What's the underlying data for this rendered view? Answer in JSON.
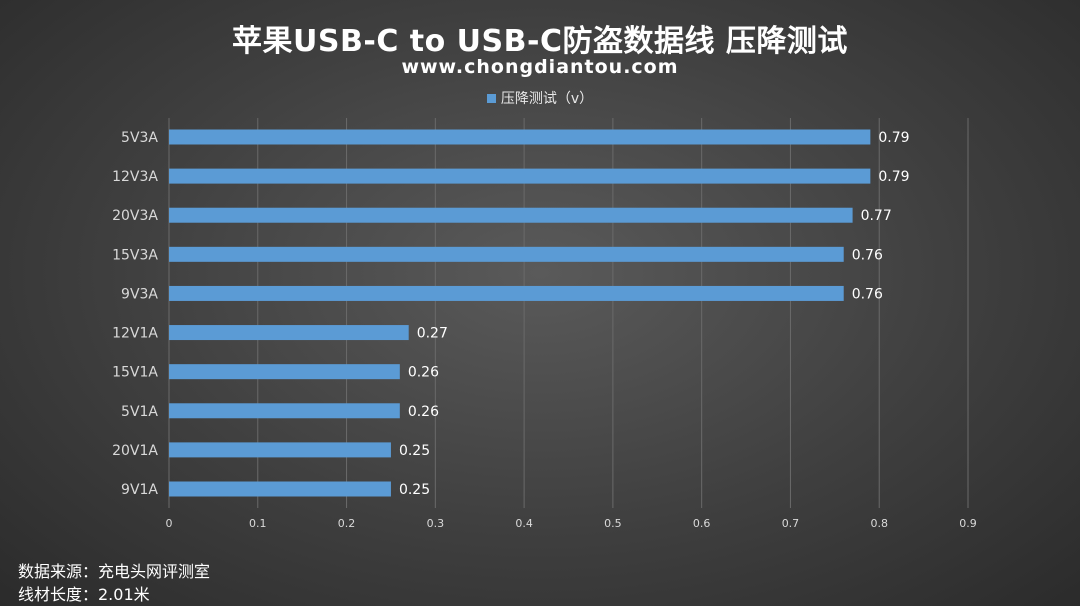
{
  "title": "苹果USB-C to USB-C防盗数据线 压降测试",
  "subtitle": "www.chongdiantou.com",
  "legend": "压降测试（v）",
  "footer": {
    "source": "数据来源：充电头网评测室",
    "length": "线材长度：2.01米"
  },
  "colors": {
    "bar": "#5b9bd5",
    "grid": "#6a6a6a",
    "text": "#ffffff",
    "tick": "#d9d9d9"
  },
  "chart_data": {
    "type": "bar",
    "orientation": "horizontal",
    "categories": [
      "5V3A",
      "12V3A",
      "20V3A",
      "15V3A",
      "9V3A",
      "12V1A",
      "15V1A",
      "5V1A",
      "20V1A",
      "9V1A"
    ],
    "series": [
      {
        "name": "压降测试（v）",
        "values": [
          0.79,
          0.79,
          0.77,
          0.76,
          0.76,
          0.27,
          0.26,
          0.26,
          0.25,
          0.25
        ]
      }
    ],
    "value_labels": [
      "0.79",
      "0.79",
      "0.77",
      "0.76",
      "0.76",
      "0.27",
      "0.26",
      "0.26",
      "0.25",
      "0.25"
    ],
    "xlim": [
      0,
      0.9
    ],
    "xticks": [
      "0",
      "0.1",
      "0.2",
      "0.3",
      "0.4",
      "0.5",
      "0.6",
      "0.7",
      "0.8",
      "0.9"
    ],
    "grid": true,
    "legend_position": "top-center"
  }
}
